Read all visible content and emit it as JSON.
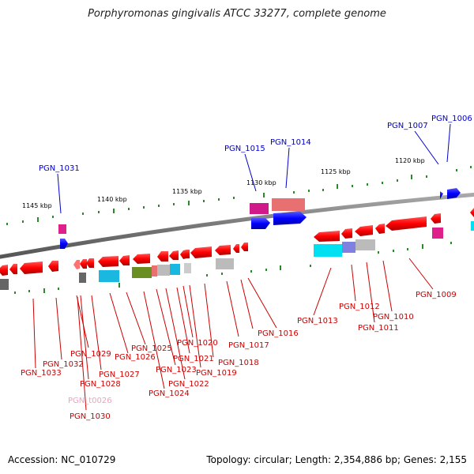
{
  "title": "Porphyromonas gingivalis ATCC 33277, complete genome",
  "footer": {
    "accession": "Accession: NC_010729",
    "topology": "Topology: circular; Length: 2,354,886 bp; Genes: 2,155"
  },
  "scale_labels": [
    "1145 kbp",
    "1140 kbp",
    "1135 kbp",
    "1130 kbp",
    "1125 kbp",
    "1120 kbp"
  ],
  "genes_top": [
    {
      "label": "PGN_1031",
      "color": "#0000cc"
    },
    {
      "label": "PGN_1015",
      "color": "#0000cc"
    },
    {
      "label": "PGN_1014",
      "color": "#0000cc"
    },
    {
      "label": "PGN_1007",
      "color": "#0000cc"
    },
    {
      "label": "PGN_1006",
      "color": "#0000cc"
    }
  ],
  "genes_bottom": [
    {
      "label": "PGN_1033",
      "color": "#cc0000"
    },
    {
      "label": "PGN_1032",
      "color": "#cc0000"
    },
    {
      "label": "PGN_1029",
      "color": "#cc0000"
    },
    {
      "label": "PGN_1028",
      "color": "#cc0000"
    },
    {
      "label": "PGN_1027",
      "color": "#cc0000"
    },
    {
      "label": "PGN_1026",
      "color": "#cc0000"
    },
    {
      "label": "PGN_t0026",
      "color": "#f0a0c0"
    },
    {
      "label": "PGN_1030",
      "color": "#cc0000"
    },
    {
      "label": "PGN_1025",
      "color": "#cc0000"
    },
    {
      "label": "PGN_1024",
      "color": "#cc0000"
    },
    {
      "label": "PGN_1023",
      "color": "#cc0000"
    },
    {
      "label": "PGN_1022",
      "color": "#cc0000"
    },
    {
      "label": "PGN_1021",
      "color": "#cc0000"
    },
    {
      "label": "PGN_1020",
      "color": "#cc0000"
    },
    {
      "label": "PGN_1019",
      "color": "#cc0000"
    },
    {
      "label": "PGN_1018",
      "color": "#cc0000"
    },
    {
      "label": "PGN_1017",
      "color": "#cc0000"
    },
    {
      "label": "PGN_1016",
      "color": "#cc0000"
    },
    {
      "label": "PGN_1013",
      "color": "#cc0000"
    },
    {
      "label": "PGN_1012",
      "color": "#cc0000"
    },
    {
      "label": "PGN_1011",
      "color": "#cc0000"
    },
    {
      "label": "PGN_1010",
      "color": "#cc0000"
    },
    {
      "label": "PGN_1009",
      "color": "#cc0000"
    }
  ]
}
